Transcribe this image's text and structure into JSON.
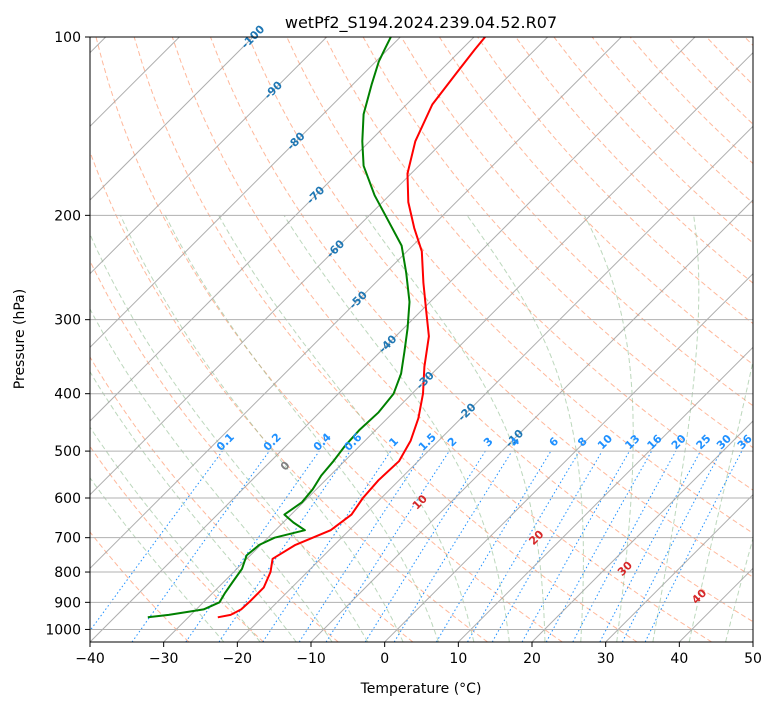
{
  "chart_data": {
    "type": "line",
    "title": "wetPf2_S194.2024.239.04.52.R07",
    "xlabel": "Temperature (°C)",
    "ylabel": "Pressure (hPa)",
    "xlim": [
      -40,
      50
    ],
    "ylim": [
      1050,
      100
    ],
    "y_scale": "log",
    "skew": "skew-T log-p",
    "x_ticks": [
      "−40",
      "−30",
      "−20",
      "−10",
      "0",
      "10",
      "20",
      "30",
      "40",
      "50"
    ],
    "x_tick_values": [
      -40,
      -30,
      -20,
      -10,
      0,
      10,
      20,
      30,
      40,
      50
    ],
    "y_ticks": [
      "100",
      "200",
      "300",
      "400",
      "500",
      "600",
      "700",
      "800",
      "900",
      "1000"
    ],
    "y_tick_values": [
      100,
      200,
      300,
      400,
      500,
      600,
      700,
      800,
      900,
      1000
    ],
    "grid": true,
    "series": [
      {
        "color": "#ff0000",
        "points": [
          [
            954,
            -26.0
          ],
          [
            945,
            -24.6
          ],
          [
            925,
            -23.9
          ],
          [
            900,
            -23.8
          ],
          [
            850,
            -23.8
          ],
          [
            800,
            -25.0
          ],
          [
            760,
            -26.5
          ],
          [
            720,
            -25.3
          ],
          [
            680,
            -22.5
          ],
          [
            640,
            -21.8
          ],
          [
            600,
            -22.5
          ],
          [
            560,
            -22.8
          ],
          [
            520,
            -22.6
          ],
          [
            480,
            -23.8
          ],
          [
            440,
            -25.8
          ],
          [
            400,
            -28.5
          ],
          [
            360,
            -32.0
          ],
          [
            320,
            -35.5
          ],
          [
            290,
            -39.3
          ],
          [
            260,
            -43.5
          ],
          [
            230,
            -48.0
          ],
          [
            210,
            -52.2
          ],
          [
            190,
            -56.5
          ],
          [
            170,
            -60.5
          ],
          [
            150,
            -63.8
          ],
          [
            130,
            -66.5
          ],
          [
            115,
            -67.5
          ],
          [
            105,
            -68.2
          ],
          [
            100,
            -68.5
          ]
        ]
      },
      {
        "color": "#008000",
        "points": [
          [
            954,
            -35.5
          ],
          [
            945,
            -33.0
          ],
          [
            925,
            -29.0
          ],
          [
            900,
            -27.8
          ],
          [
            870,
            -28.3
          ],
          [
            830,
            -28.8
          ],
          [
            790,
            -29.3
          ],
          [
            750,
            -30.5
          ],
          [
            720,
            -30.2
          ],
          [
            700,
            -29.1
          ],
          [
            680,
            -26.0
          ],
          [
            660,
            -28.6
          ],
          [
            640,
            -30.9
          ],
          [
            610,
            -30.2
          ],
          [
            580,
            -30.5
          ],
          [
            550,
            -31.2
          ],
          [
            520,
            -31.5
          ],
          [
            490,
            -32.0
          ],
          [
            460,
            -32.2
          ],
          [
            430,
            -32.0
          ],
          [
            400,
            -32.5
          ],
          [
            370,
            -34.2
          ],
          [
            340,
            -36.7
          ],
          [
            310,
            -39.5
          ],
          [
            280,
            -42.8
          ],
          [
            250,
            -47.2
          ],
          [
            225,
            -51.5
          ],
          [
            205,
            -56.5
          ],
          [
            185,
            -62.0
          ],
          [
            165,
            -67.5
          ],
          [
            150,
            -71.0
          ],
          [
            135,
            -74.5
          ],
          [
            120,
            -77.5
          ],
          [
            110,
            -79.6
          ],
          [
            104,
            -80.6
          ],
          [
            100,
            -81.3
          ]
        ]
      }
    ],
    "isotherm_labels": [
      {
        "text": "-100",
        "p": 100,
        "t": -100
      },
      {
        "text": "-90",
        "p": 123,
        "t": -90
      },
      {
        "text": "-80",
        "p": 150,
        "t": -80
      },
      {
        "text": "-70",
        "p": 185,
        "t": -70
      },
      {
        "text": "-60",
        "p": 228,
        "t": -60
      },
      {
        "text": "-50",
        "p": 278,
        "t": -50
      },
      {
        "text": "-40",
        "p": 330,
        "t": -40
      },
      {
        "text": "-30",
        "p": 380,
        "t": -30
      },
      {
        "text": "-20",
        "p": 430,
        "t": -20
      },
      {
        "text": "-10",
        "p": 476,
        "t": -10
      }
    ],
    "mixing_ratio_labels": [
      "0.1",
      "0.2",
      "0.4",
      "0.6",
      "1",
      "1.5",
      "2",
      "3",
      "4",
      "6",
      "8",
      "10",
      "13",
      "16",
      "20",
      "25",
      "30",
      "36"
    ],
    "mixing_ratio_values": [
      0.1,
      0.2,
      0.4,
      0.6,
      1,
      1.5,
      2,
      3,
      4,
      6,
      8,
      10,
      13,
      16,
      20,
      25,
      30,
      36
    ],
    "mixing_ratio_label_pressure": 500,
    "moist_adiabat_labels": [
      {
        "text": "0",
        "p": 530,
        "theta_w": 0
      },
      {
        "text": "10",
        "p": 610,
        "theta_w": 10
      },
      {
        "text": "20",
        "p": 700,
        "theta_w": 20
      },
      {
        "text": "30",
        "p": 790,
        "theta_w": 30
      },
      {
        "text": "40",
        "p": 880,
        "theta_w": 40
      }
    ],
    "colors": {
      "isotherm_label": "#1f77b4",
      "mixing_ratio": "#1e90ff",
      "dry_adiabat": "#ffa07a",
      "moist_adiabat": "#8fbc8f",
      "moist_label": "#d62728",
      "isotherm_line": "#a0a0a0",
      "freezing_label": "#808080"
    }
  }
}
